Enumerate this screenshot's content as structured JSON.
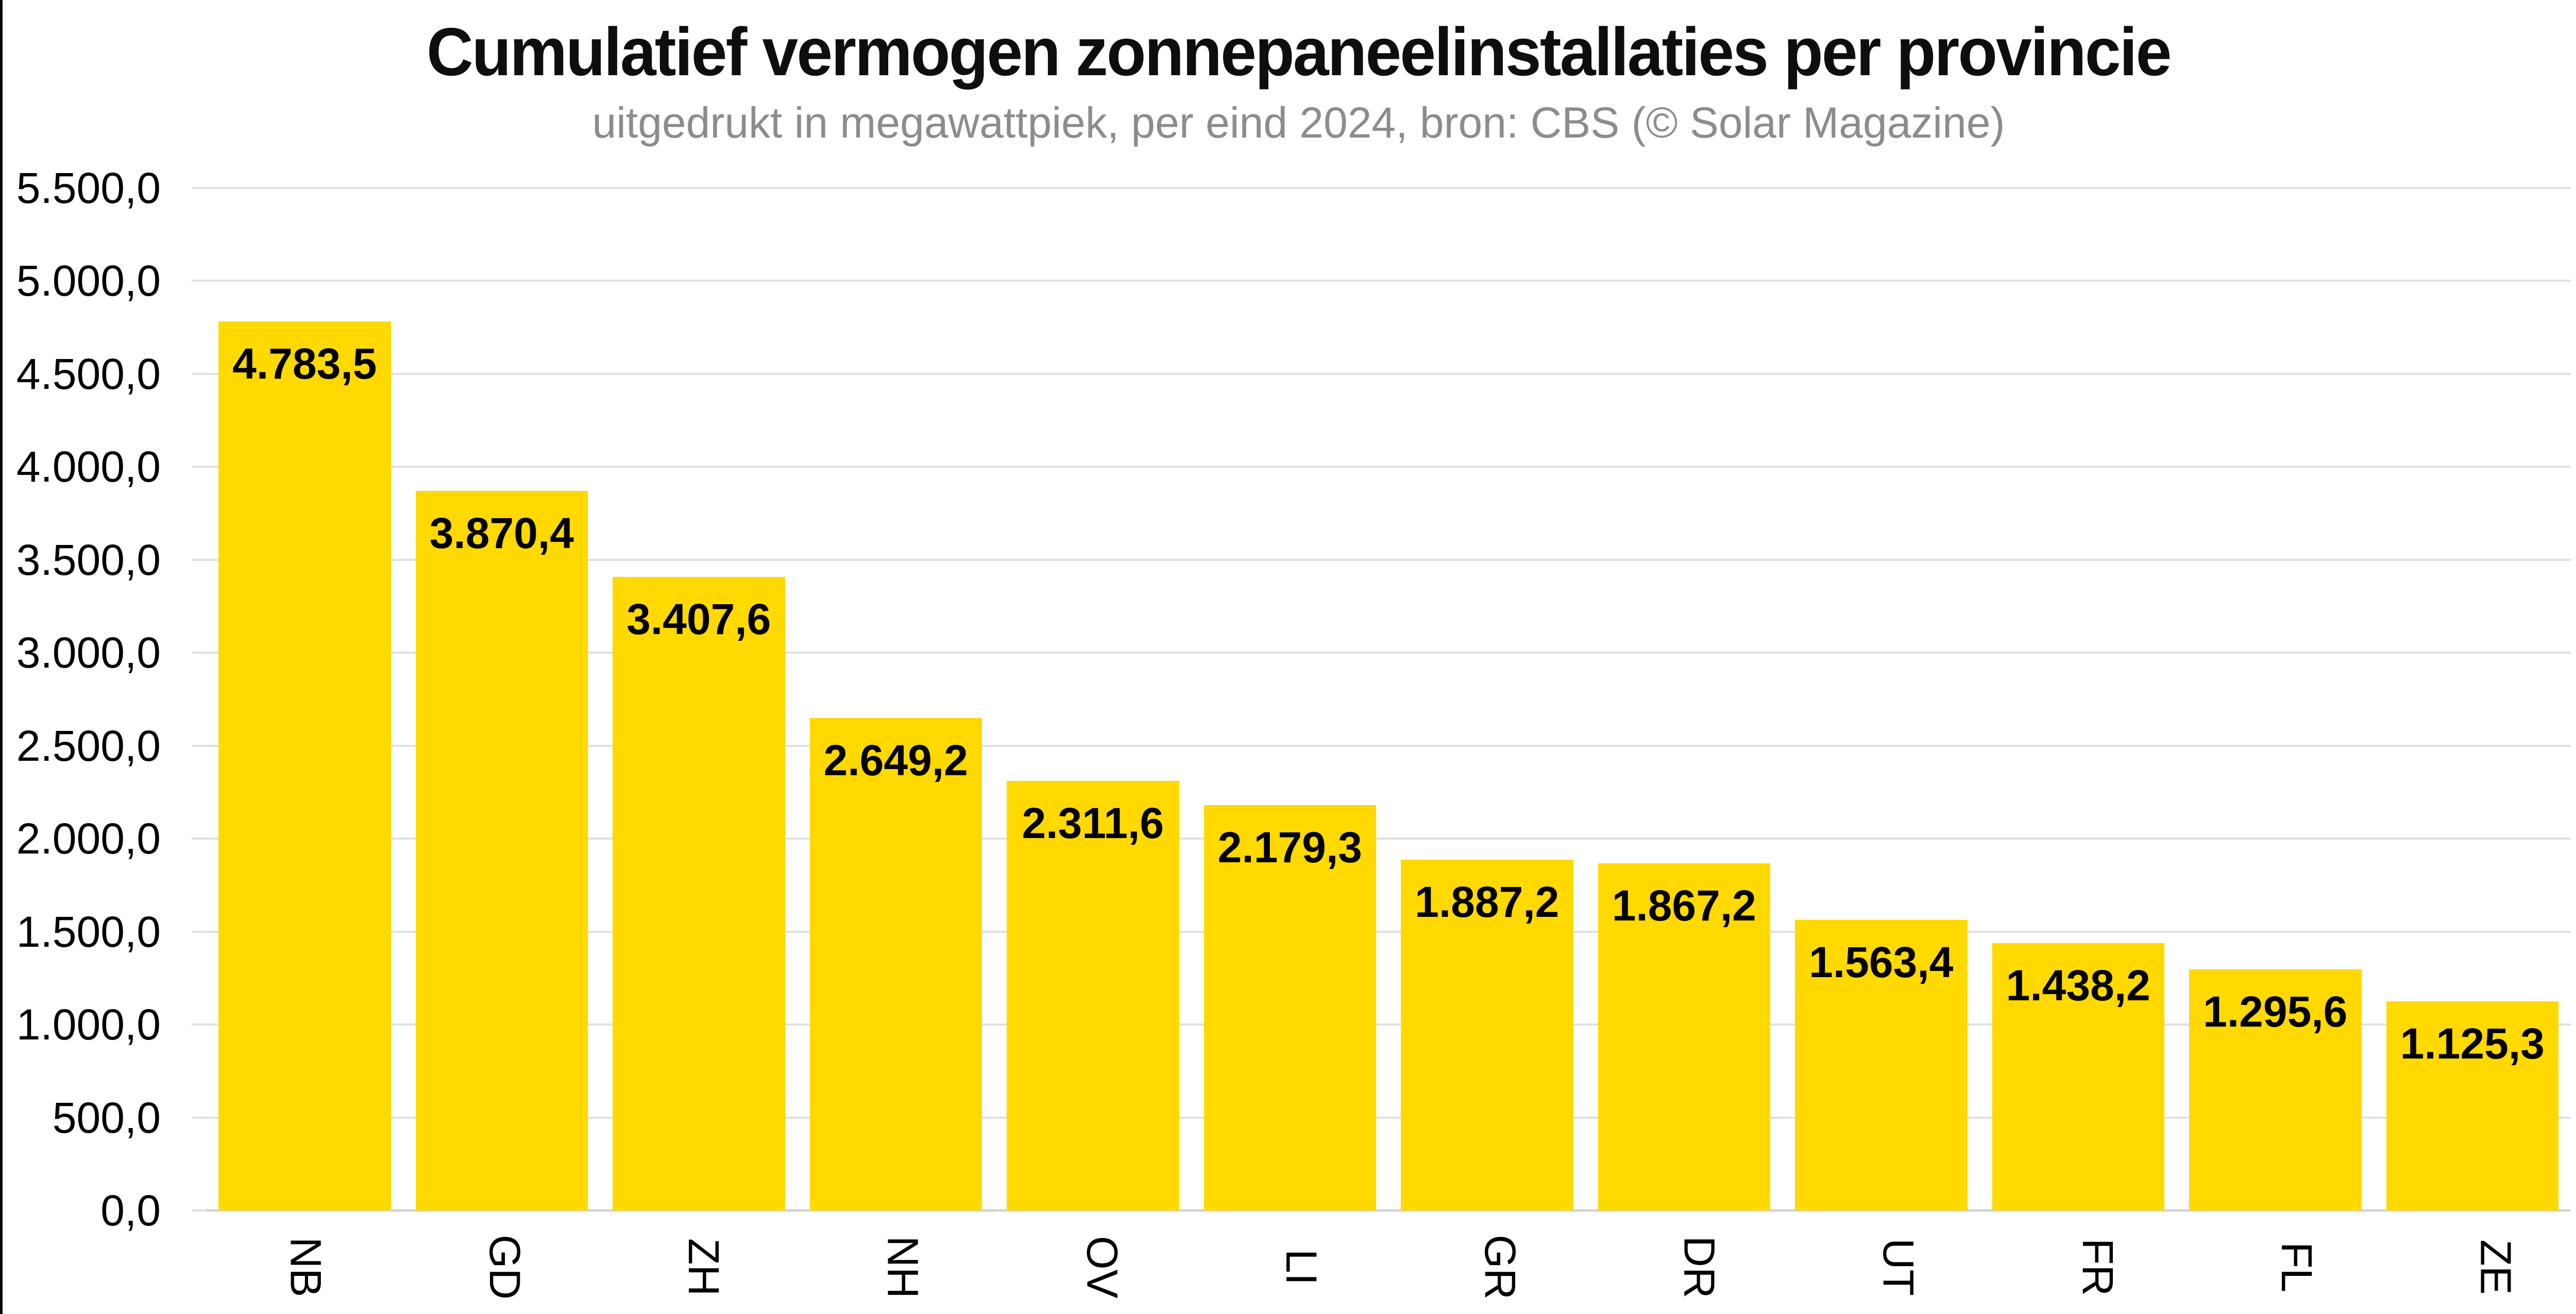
{
  "page": {
    "background": "#ffffff",
    "left_edge_color": "#000000"
  },
  "header": {
    "title": "Cumulatief vermogen zonnepaneelinstallaties per provincie",
    "subtitle": "uitgedrukt in megawattpiek, per eind 2024, bron: CBS (© Solar Magazine)"
  },
  "chart_data": {
    "type": "bar",
    "title": "Cumulatief vermogen zonnepaneelinstallaties per provincie",
    "subtitle": "uitgedrukt in megawattpiek, per eind 2024, bron: CBS (© Solar Magazine)",
    "categories": [
      "NB",
      "GD",
      "ZH",
      "NH",
      "OV",
      "LI",
      "GR",
      "DR",
      "UT",
      "FR",
      "FL",
      "ZE"
    ],
    "values": [
      4783.5,
      3870.4,
      3407.6,
      2649.2,
      2311.6,
      2179.3,
      1887.2,
      1867.2,
      1563.4,
      1438.2,
      1295.6,
      1125.3
    ],
    "value_labels": [
      "4.783,5",
      "3.870,4",
      "3.407,6",
      "2.649,2",
      "2.311,6",
      "2.179,3",
      "1.887,2",
      "1.867,2",
      "1.563,4",
      "1.438,2",
      "1.295,6",
      "1.125,3"
    ],
    "y_axis": {
      "min": 0,
      "max": 5500,
      "step": 500,
      "tick_labels": [
        "5.500,0",
        "5.000,0",
        "4.500,0",
        "4.000,0",
        "3.500,0",
        "3.000,0",
        "2.500,0",
        "2.000,0",
        "1.500,0",
        "1.000,0",
        "500,0",
        "0,0"
      ]
    },
    "x_label_rotation_deg": 90,
    "grid": true,
    "legend": false,
    "colors": {
      "bar": "#FFD900",
      "gridline": "#e0e0e0",
      "baseline": "#d4d4d4",
      "tick": "#e0e0e0",
      "value_label": "#000000",
      "axis_label": "#000000",
      "title": "#0e0e0e",
      "subtitle": "#8c8c8c"
    }
  }
}
